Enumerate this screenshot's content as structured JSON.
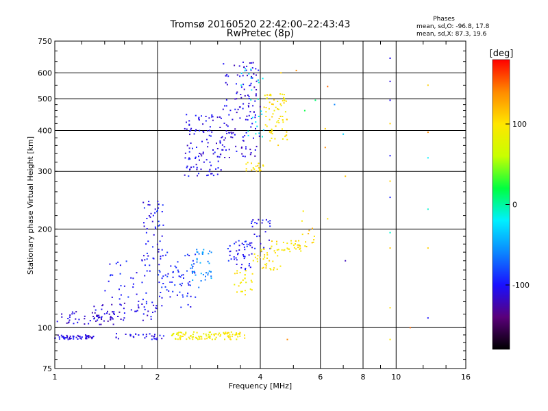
{
  "chart_data": {
    "type": "scatter",
    "title": "Tromsø 20160520 22:42:00–22:43:43",
    "subtitle": "RwPretec (8p)",
    "xlabel": "Frequency [MHz]",
    "ylabel": "Stationary phase Virtual Height [km]",
    "x_scale": "log",
    "y_scale": "log",
    "xlim": [
      1,
      16
    ],
    "ylim": [
      75,
      750
    ],
    "x_ticks": [
      "1",
      "2",
      "4",
      "6",
      "8",
      "10",
      "16"
    ],
    "x_tick_values": [
      1,
      2,
      4,
      6,
      8,
      10,
      16
    ],
    "y_ticks": [
      "750",
      "600",
      "500",
      "400",
      "300",
      "200",
      "100",
      "75"
    ],
    "y_tick_values": [
      750,
      600,
      500,
      400,
      300,
      200,
      100,
      75
    ],
    "grid": true,
    "phases_box": {
      "heading": "Phases",
      "line_o": "mean, sd,O: -96.8, 17.8",
      "line_x": "mean, sd,X:  87.3, 19.6"
    },
    "colorbar": {
      "label": "[deg]",
      "range": [
        -180,
        180
      ],
      "tick_labels": [
        "100",
        "0",
        "-100"
      ],
      "tick_values": [
        100,
        0,
        -100
      ]
    },
    "clusters": [
      {
        "x": [
          1.0,
          1.3
        ],
        "y": [
          92,
          95
        ],
        "phase": -110,
        "n": 55
      },
      {
        "x": [
          1.0,
          1.5
        ],
        "y": [
          102,
          112
        ],
        "phase": -115,
        "n": 45
      },
      {
        "x": [
          1.3,
          2.0
        ],
        "y": [
          105,
          120
        ],
        "phase": -110,
        "n": 55
      },
      {
        "x": [
          1.5,
          2.1
        ],
        "y": [
          92,
          96
        ],
        "phase": -105,
        "n": 30
      },
      {
        "x": [
          1.4,
          1.9
        ],
        "y": [
          118,
          160
        ],
        "phase": -100,
        "n": 35
      },
      {
        "x": [
          1.8,
          2.1
        ],
        "y": [
          160,
          255
        ],
        "phase": -100,
        "n": 50
      },
      {
        "x": [
          2.0,
          2.6
        ],
        "y": [
          115,
          170
        ],
        "phase": -95,
        "n": 70
      },
      {
        "x": [
          2.5,
          2.9
        ],
        "y": [
          130,
          175
        ],
        "phase": -55,
        "n": 40
      },
      {
        "x": [
          2.2,
          3.0
        ],
        "y": [
          92,
          97
        ],
        "phase": 90,
        "n": 70
      },
      {
        "x": [
          3.0,
          3.6
        ],
        "y": [
          92,
          97
        ],
        "phase": 95,
        "n": 40
      },
      {
        "x": [
          2.4,
          3.1
        ],
        "y": [
          290,
          450
        ],
        "phase": -105,
        "n": 110
      },
      {
        "x": [
          3.1,
          4.0
        ],
        "y": [
          330,
          650
        ],
        "phase": -110,
        "n": 130
      },
      {
        "x": [
          3.5,
          4.1
        ],
        "y": [
          380,
          630
        ],
        "phase": -20,
        "n": 25
      },
      {
        "x": [
          3.6,
          4.1
        ],
        "y": [
          300,
          320
        ],
        "phase": 100,
        "n": 20
      },
      {
        "x": [
          4.1,
          4.8
        ],
        "y": [
          360,
          520
        ],
        "phase": 100,
        "n": 70
      },
      {
        "x": [
          3.2,
          3.8
        ],
        "y": [
          150,
          185
        ],
        "phase": -100,
        "n": 45
      },
      {
        "x": [
          3.7,
          4.3
        ],
        "y": [
          170,
          215
        ],
        "phase": -100,
        "n": 25
      },
      {
        "x": [
          3.3,
          3.8
        ],
        "y": [
          125,
          150
        ],
        "phase": 95,
        "n": 25
      },
      {
        "x": [
          3.8,
          4.6
        ],
        "y": [
          150,
          175
        ],
        "phase": 100,
        "n": 35
      },
      {
        "x": [
          4.3,
          5.5
        ],
        "y": [
          170,
          185
        ],
        "phase": 100,
        "n": 35
      },
      {
        "x": [
          5.3,
          5.8
        ],
        "y": [
          180,
          230
        ],
        "phase": 110,
        "n": 10
      }
    ],
    "sparse_points": [
      {
        "x": 5.4,
        "y": 460,
        "phase": 20
      },
      {
        "x": 5.8,
        "y": 495,
        "phase": 10
      },
      {
        "x": 6.3,
        "y": 545,
        "phase": 150
      },
      {
        "x": 6.6,
        "y": 480,
        "phase": -60
      },
      {
        "x": 7.0,
        "y": 390,
        "phase": -30
      },
      {
        "x": 6.2,
        "y": 405,
        "phase": 110
      },
      {
        "x": 6.2,
        "y": 355,
        "phase": 140
      },
      {
        "x": 7.1,
        "y": 290,
        "phase": 115
      },
      {
        "x": 6.3,
        "y": 215,
        "phase": 100
      },
      {
        "x": 7.1,
        "y": 160,
        "phase": -120
      },
      {
        "x": 9.6,
        "y": 665,
        "phase": -105
      },
      {
        "x": 9.6,
        "y": 565,
        "phase": -110
      },
      {
        "x": 9.6,
        "y": 495,
        "phase": -105
      },
      {
        "x": 9.6,
        "y": 420,
        "phase": 110
      },
      {
        "x": 9.6,
        "y": 335,
        "phase": -100
      },
      {
        "x": 9.6,
        "y": 280,
        "phase": 110
      },
      {
        "x": 9.6,
        "y": 250,
        "phase": -95
      },
      {
        "x": 9.6,
        "y": 195,
        "phase": -10
      },
      {
        "x": 9.6,
        "y": 175,
        "phase": 115
      },
      {
        "x": 9.6,
        "y": 115,
        "phase": 105
      },
      {
        "x": 9.6,
        "y": 92,
        "phase": 100
      },
      {
        "x": 11.0,
        "y": 100,
        "phase": 150
      },
      {
        "x": 12.4,
        "y": 550,
        "phase": 110
      },
      {
        "x": 12.4,
        "y": 395,
        "phase": 140
      },
      {
        "x": 12.4,
        "y": 330,
        "phase": -20
      },
      {
        "x": 12.4,
        "y": 230,
        "phase": -10
      },
      {
        "x": 12.4,
        "y": 175,
        "phase": 110
      },
      {
        "x": 12.4,
        "y": 107,
        "phase": -100
      },
      {
        "x": 4.6,
        "y": 600,
        "phase": 110
      },
      {
        "x": 5.1,
        "y": 610,
        "phase": 140
      },
      {
        "x": 4.8,
        "y": 92,
        "phase": 140
      }
    ]
  },
  "colors": {
    "colormap": [
      "#000000",
      "#5a007a",
      "#1a10ff",
      "#0b85ff",
      "#00f0ff",
      "#00ff40",
      "#c8ff00",
      "#ffe600",
      "#ff8a00",
      "#ff0000"
    ]
  }
}
